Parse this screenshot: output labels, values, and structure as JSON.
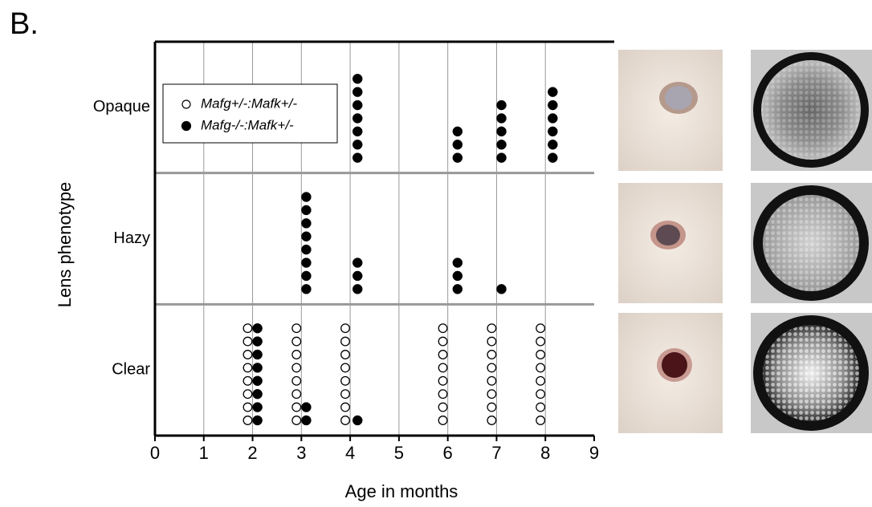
{
  "figure_label": "B.",
  "chart_data": {
    "type": "dot-strip",
    "xlabel": "Age in months",
    "ylabel": "Lens phenotype",
    "xlim": [
      0,
      9
    ],
    "xticks": [
      0,
      1,
      2,
      3,
      4,
      5,
      6,
      7,
      8,
      9
    ],
    "grid": true,
    "categories": [
      "Opaque",
      "Hazy",
      "Clear"
    ],
    "series": [
      {
        "name": "Mafg+/-:Mafk+/-",
        "color": "#000000",
        "hollow": true,
        "points": [
          {
            "category": "Clear",
            "x": 1.9,
            "count": 8
          },
          {
            "category": "Clear",
            "x": 2.9,
            "count": 8
          },
          {
            "category": "Clear",
            "x": 3.9,
            "count": 8
          },
          {
            "category": "Clear",
            "x": 5.9,
            "count": 8
          },
          {
            "category": "Clear",
            "x": 6.9,
            "count": 8
          },
          {
            "category": "Clear",
            "x": 7.9,
            "count": 8
          }
        ]
      },
      {
        "name": "Mafg-/-:Mafk+/-",
        "color": "#000000",
        "hollow": false,
        "points": [
          {
            "category": "Opaque",
            "x": 4.15,
            "count": 7
          },
          {
            "category": "Opaque",
            "x": 6.2,
            "count": 3
          },
          {
            "category": "Opaque",
            "x": 7.1,
            "count": 5
          },
          {
            "category": "Opaque",
            "x": 8.15,
            "count": 6
          },
          {
            "category": "Hazy",
            "x": 3.1,
            "count": 8
          },
          {
            "category": "Hazy",
            "x": 4.15,
            "count": 3
          },
          {
            "category": "Hazy",
            "x": 6.2,
            "count": 3
          },
          {
            "category": "Hazy",
            "x": 7.1,
            "count": 1
          },
          {
            "category": "Clear",
            "x": 2.1,
            "count": 8
          },
          {
            "category": "Clear",
            "x": 3.1,
            "count": 2
          },
          {
            "category": "Clear",
            "x": 4.15,
            "count": 1
          }
        ]
      }
    ]
  }
}
